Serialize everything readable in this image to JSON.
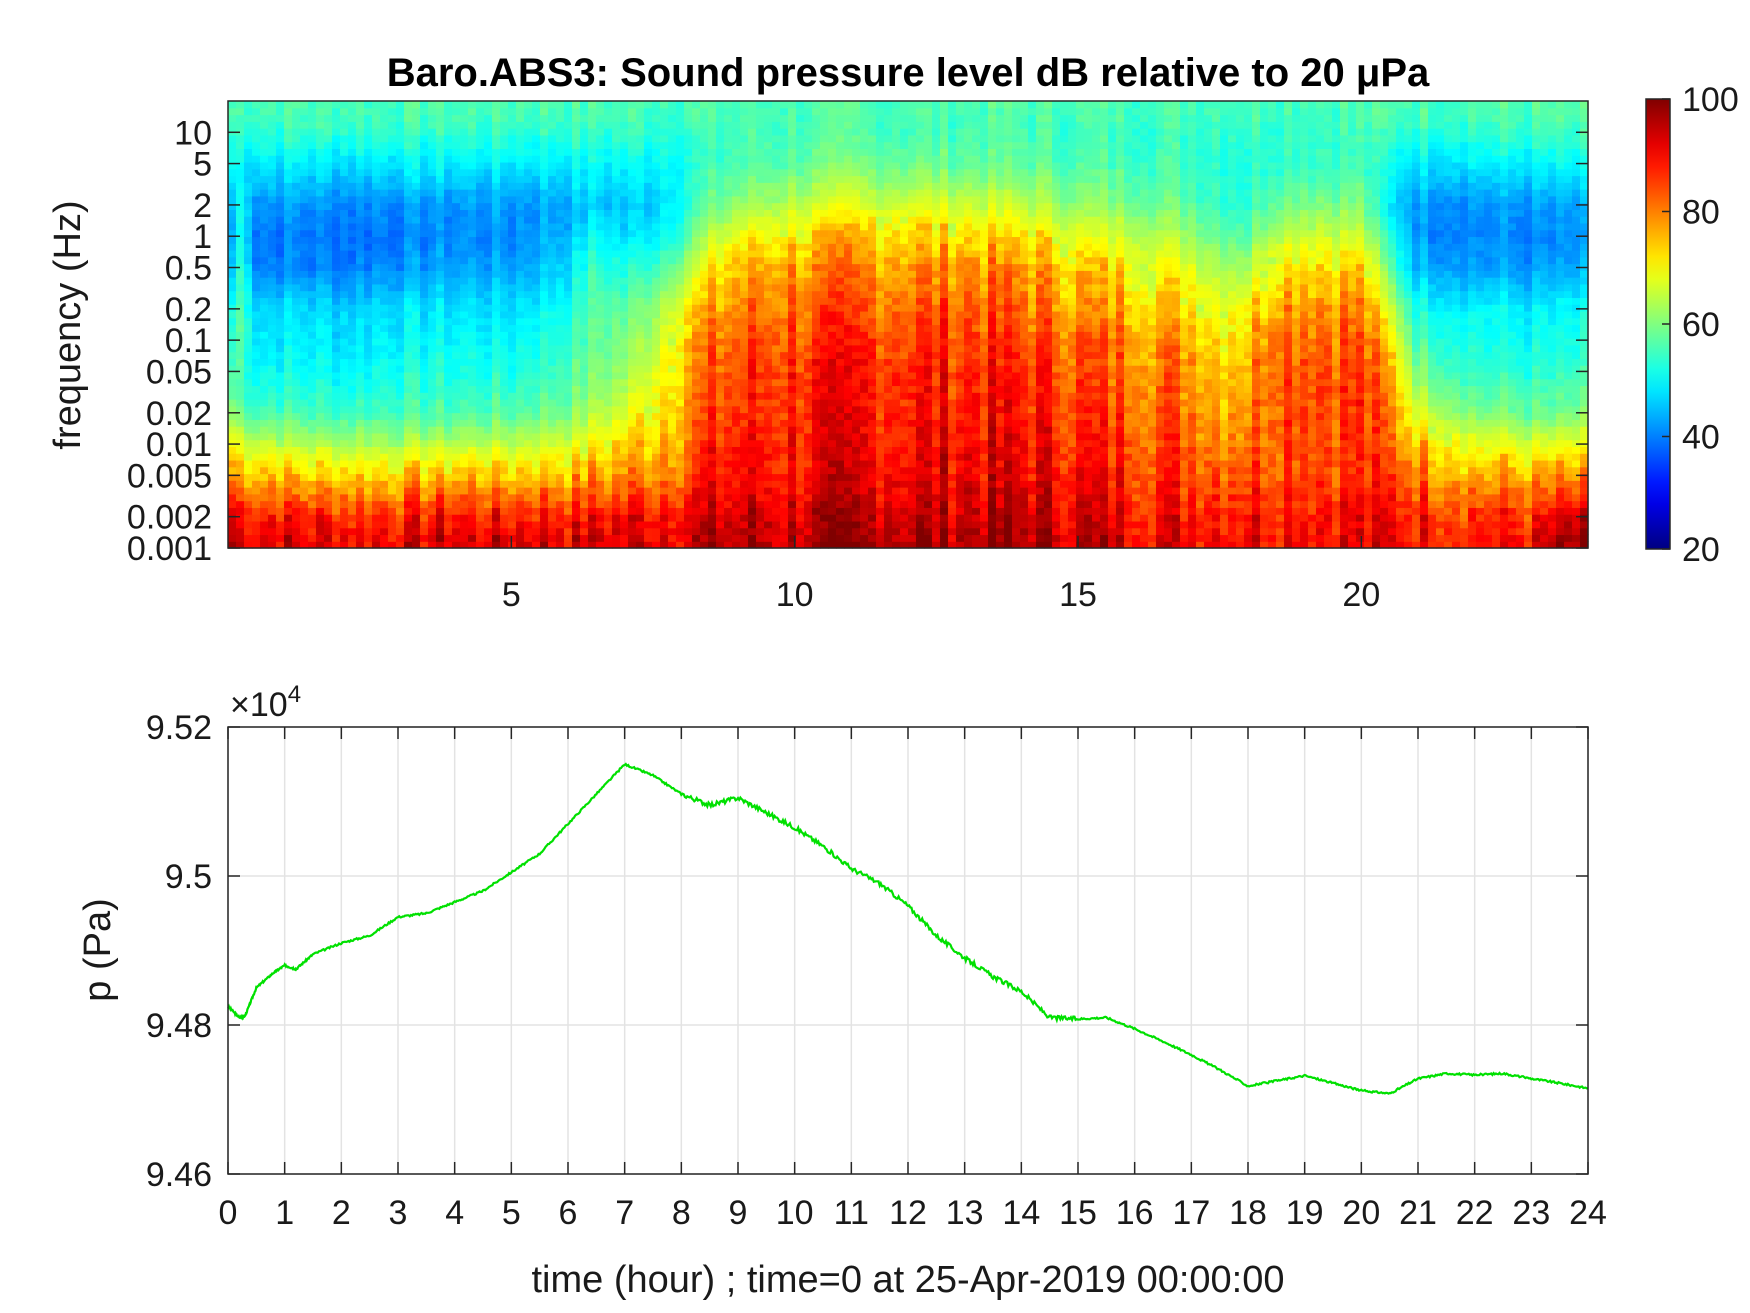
{
  "chart_data": [
    {
      "type": "heatmap",
      "title": "Baro.ABS3: Sound pressure level dB relative to 20 μPa",
      "xlabel": "",
      "ylabel": "frequency (Hz)",
      "xlim": [
        0,
        24
      ],
      "ylim": [
        0.001,
        20
      ],
      "yscale": "log",
      "x_ticks": [
        5,
        10,
        15,
        20
      ],
      "y_ticks": [
        0.001,
        0.002,
        0.005,
        0.01,
        0.02,
        0.05,
        0.1,
        0.2,
        0.5,
        1,
        2,
        5,
        10
      ],
      "colormap": "jet",
      "colorbar": {
        "min": 20,
        "max": 100,
        "ticks": [
          20,
          40,
          60,
          80,
          100
        ]
      },
      "time_bins_hour": [
        0,
        0.25,
        0.5,
        0.75,
        1,
        2,
        3,
        4,
        5,
        6,
        6.5,
        7,
        7.5,
        8,
        8.5,
        9,
        10,
        11,
        12,
        13,
        14,
        15,
        16,
        17,
        17.5,
        18,
        18.5,
        19,
        20,
        20.5,
        21,
        22,
        23,
        23.5,
        24
      ],
      "freq_bins_hz": [
        0.0012,
        0.002,
        0.003,
        0.005,
        0.01,
        0.02,
        0.05,
        0.1,
        0.2,
        0.5,
        1,
        2,
        5,
        10,
        15
      ],
      "levels_db": [
        [
          96,
          92,
          86,
          79,
          70,
          62,
          55,
          53,
          50,
          42,
          40,
          42,
          52,
          54,
          56
        ],
        [
          95,
          91,
          85,
          78,
          68,
          58,
          56,
          58,
          57,
          55,
          53,
          52,
          50,
          54,
          56
        ],
        [
          94,
          90,
          84,
          76,
          66,
          56,
          51,
          49,
          48,
          41,
          40,
          42,
          49,
          54,
          56
        ],
        [
          93,
          89,
          83,
          76,
          66,
          56,
          51,
          49,
          48,
          41,
          40,
          42,
          49,
          54,
          56
        ],
        [
          93,
          88,
          82,
          75,
          65,
          56,
          51,
          49,
          48,
          41,
          40,
          42,
          49,
          54,
          56
        ],
        [
          92,
          88,
          82,
          74,
          64,
          55,
          50,
          48,
          47,
          40,
          39,
          41,
          48,
          54,
          56
        ],
        [
          92,
          88,
          82,
          74,
          64,
          56,
          52,
          50,
          48,
          42,
          40,
          42,
          49,
          54,
          56
        ],
        [
          92,
          89,
          83,
          75,
          65,
          56,
          52,
          50,
          48,
          43,
          41,
          42,
          49,
          54,
          56
        ],
        [
          93,
          89,
          83,
          75,
          65,
          57,
          52,
          50,
          48,
          43,
          41,
          42,
          49,
          54,
          56
        ],
        [
          93,
          89,
          83,
          76,
          67,
          60,
          56,
          54,
          52,
          48,
          45,
          44,
          50,
          54,
          56
        ],
        [
          93,
          89,
          84,
          77,
          70,
          64,
          60,
          58,
          57,
          55,
          50,
          46,
          50,
          54,
          56
        ],
        [
          93,
          90,
          85,
          79,
          73,
          67,
          62,
          60,
          57,
          52,
          47,
          45,
          50,
          54,
          56
        ],
        [
          94,
          91,
          86,
          81,
          76,
          72,
          68,
          65,
          62,
          55,
          50,
          47,
          51,
          54,
          56
        ],
        [
          94,
          92,
          88,
          84,
          80,
          78,
          76,
          74,
          70,
          62,
          56,
          52,
          52,
          54,
          56
        ],
        [
          95,
          93,
          90,
          88,
          86,
          84,
          82,
          80,
          76,
          70,
          64,
          58,
          54,
          55,
          56
        ],
        [
          95,
          94,
          91,
          89,
          88,
          86,
          85,
          83,
          80,
          75,
          69,
          62,
          56,
          55,
          56
        ],
        [
          96,
          94,
          92,
          90,
          89,
          88,
          87,
          85,
          82,
          78,
          72,
          65,
          58,
          56,
          56
        ],
        [
          96,
          95,
          93,
          91,
          90,
          89,
          88,
          86,
          83,
          79,
          74,
          67,
          59,
          56,
          56
        ],
        [
          97,
          95,
          93,
          92,
          90,
          89,
          88,
          86,
          83,
          79,
          74,
          67,
          59,
          56,
          56
        ],
        [
          97,
          95,
          94,
          92,
          91,
          89,
          88,
          86,
          83,
          79,
          73,
          66,
          58,
          56,
          56
        ],
        [
          96,
          95,
          93,
          91,
          90,
          89,
          87,
          85,
          82,
          78,
          72,
          65,
          58,
          56,
          56
        ],
        [
          95,
          94,
          92,
          90,
          88,
          86,
          84,
          82,
          78,
          74,
          68,
          62,
          56,
          55,
          56
        ],
        [
          92,
          91,
          89,
          88,
          86,
          84,
          82,
          80,
          76,
          71,
          66,
          60,
          56,
          55,
          56
        ],
        [
          91,
          90,
          88,
          86,
          84,
          82,
          80,
          77,
          73,
          68,
          63,
          58,
          55,
          55,
          56
        ],
        [
          91,
          90,
          88,
          85,
          82,
          79,
          76,
          73,
          69,
          64,
          59,
          55,
          54,
          55,
          56
        ],
        [
          92,
          90,
          88,
          85,
          82,
          80,
          78,
          75,
          71,
          64,
          58,
          54,
          53,
          55,
          56
        ],
        [
          92,
          91,
          89,
          87,
          85,
          86,
          86,
          84,
          80,
          73,
          66,
          60,
          55,
          55,
          56
        ],
        [
          92,
          91,
          89,
          87,
          86,
          87,
          86,
          84,
          80,
          74,
          67,
          61,
          55,
          55,
          56
        ],
        [
          91,
          90,
          88,
          86,
          85,
          86,
          85,
          83,
          79,
          73,
          66,
          60,
          55,
          55,
          56
        ],
        [
          91,
          90,
          88,
          85,
          82,
          80,
          76,
          72,
          66,
          58,
          52,
          48,
          51,
          54,
          56
        ],
        [
          90,
          89,
          86,
          82,
          76,
          68,
          60,
          56,
          52,
          45,
          42,
          43,
          49,
          54,
          56
        ],
        [
          89,
          87,
          83,
          77,
          69,
          60,
          54,
          52,
          50,
          43,
          41,
          42,
          49,
          54,
          56
        ],
        [
          90,
          86,
          82,
          76,
          67,
          58,
          53,
          51,
          49,
          42,
          40,
          42,
          49,
          54,
          56
        ],
        [
          94,
          90,
          84,
          77,
          67,
          58,
          53,
          51,
          49,
          42,
          40,
          42,
          49,
          54,
          56
        ],
        [
          96,
          93,
          86,
          78,
          68,
          60,
          54,
          52,
          50,
          43,
          41,
          43,
          50,
          54,
          56
        ]
      ]
    },
    {
      "type": "line",
      "title": "",
      "xlabel": "time (hour) ; time=0 at 25-Apr-2019 00:00:00",
      "ylabel": "p (Pa)",
      "xlim": [
        0,
        24
      ],
      "ylim": [
        94600,
        95200
      ],
      "exponent_label": "×10",
      "exponent": "4",
      "x_ticks": [
        0,
        1,
        2,
        3,
        4,
        5,
        6,
        7,
        8,
        9,
        10,
        11,
        12,
        13,
        14,
        15,
        16,
        17,
        18,
        19,
        20,
        21,
        22,
        23,
        24
      ],
      "y_ticks": [
        "9.46",
        "9.48",
        "9.5",
        "9.52"
      ],
      "y_tick_values": [
        94600,
        94800,
        95000,
        95200
      ],
      "grid": true,
      "series": [
        {
          "color": "#00e000",
          "x": [
            0,
            0.2,
            0.3,
            0.5,
            0.8,
            1.0,
            1.2,
            1.5,
            2,
            2.5,
            3,
            3.5,
            4,
            4.5,
            5,
            5.5,
            6,
            6.5,
            7,
            7.5,
            8,
            8.5,
            9,
            9.5,
            10,
            10.5,
            11,
            11.5,
            12,
            12.5,
            13,
            13.5,
            14,
            14.5,
            15,
            15.5,
            16,
            16.5,
            17,
            17.5,
            18,
            18.5,
            19,
            19.5,
            20,
            20.5,
            21,
            21.5,
            22,
            22.5,
            23,
            23.5,
            24
          ],
          "y": [
            94825,
            94810,
            94812,
            94850,
            94870,
            94880,
            94875,
            94895,
            94910,
            94920,
            94945,
            94950,
            94965,
            94980,
            95005,
            95030,
            95070,
            95110,
            95150,
            95135,
            95110,
            95095,
            95105,
            95085,
            95065,
            95040,
            95010,
            94990,
            94960,
            94920,
            94890,
            94865,
            94845,
            94810,
            94808,
            94810,
            94795,
            94778,
            94760,
            94740,
            94718,
            94725,
            94732,
            94722,
            94712,
            94708,
            94728,
            94735,
            94733,
            94735,
            94728,
            94722,
            94715
          ]
        }
      ]
    }
  ]
}
